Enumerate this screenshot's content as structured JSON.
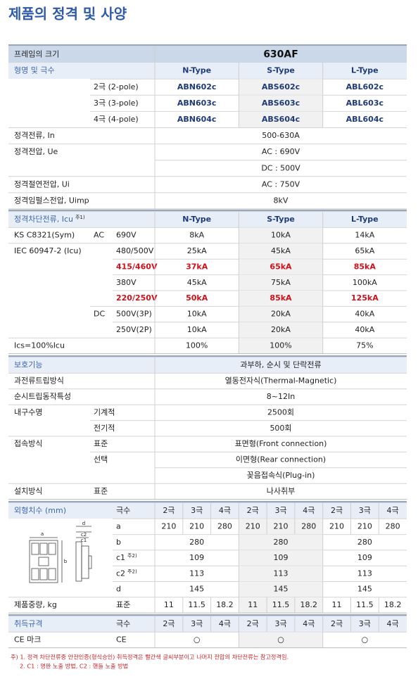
{
  "title": "제품의 정격 및 사양",
  "sections": [
    {
      "rows": [
        {
          "label": "프레임의 크기",
          "values": [
            "630AF"
          ],
          "style": "frame"
        },
        {
          "label": "형명 및 극수",
          "values": [
            "N-Type",
            "S-Type",
            "L-Type"
          ],
          "style": "head"
        },
        {
          "col2": "2극 (2-pole)",
          "values": [
            "ABN602c",
            "ABS602c",
            "ABL602c"
          ],
          "style": "model"
        },
        {
          "col2": "3극 (3-pole)",
          "values": [
            "ABN603c",
            "ABS603c",
            "ABL603c"
          ],
          "style": "model"
        },
        {
          "col2": "4극 (4-pole)",
          "values": [
            "ABN604c",
            "ABS604c",
            "ABL604c"
          ],
          "style": "model"
        },
        {
          "label": "정격전류, In",
          "values": [
            "500-630A"
          ]
        },
        {
          "label": "정격전압, Ue",
          "values": [
            "AC : 690V"
          ]
        },
        {
          "values": [
            "DC : 500V"
          ]
        },
        {
          "label": "정격절연전압, Ui",
          "values": [
            "AC : 750V"
          ]
        },
        {
          "label": "정격임펄스전압, Uimp",
          "values": [
            "8kV"
          ]
        }
      ]
    },
    {
      "rows": [
        {
          "label": "정격차단전류, Icu",
          "note": "주1)",
          "values": [
            "N-Type",
            "S-Type",
            "L-Type"
          ],
          "style": "head"
        },
        {
          "label": "KS C8321(Sym)",
          "col2": "AC",
          "col3": "690V",
          "values": [
            "8kA",
            "10kA",
            "14kA"
          ]
        },
        {
          "label": "IEC 60947-2 (Icu)",
          "col3": "480/500V",
          "values": [
            "25kA",
            "45kA",
            "65kA"
          ]
        },
        {
          "col3": "415/460V",
          "values": [
            "37kA",
            "65kA",
            "85kA"
          ],
          "style": "red"
        },
        {
          "col3": "380V",
          "values": [
            "45kA",
            "75kA",
            "100kA"
          ]
        },
        {
          "col3": "220/250V",
          "values": [
            "50kA",
            "85kA",
            "125kA"
          ],
          "style": "red"
        },
        {
          "col2": "DC",
          "col3": "500V(3P)",
          "values": [
            "10kA",
            "20kA",
            "40kA"
          ]
        },
        {
          "col3": "250V(2P)",
          "values": [
            "10kA",
            "20kA",
            "40kA"
          ]
        },
        {
          "label": "Ics=100%Icu",
          "values": [
            "100%",
            "100%",
            "75%"
          ]
        }
      ]
    },
    {
      "rows": [
        {
          "label": "보호기능",
          "values": [
            "과부하, 순시 및 단락전류"
          ],
          "style": "head2"
        },
        {
          "label": "과전류트립방식",
          "values": [
            "열동전자식(Thermal-Magnetic)"
          ]
        },
        {
          "label": "순시트립동작특성",
          "values": [
            "8~12In"
          ]
        },
        {
          "label": "내구수명",
          "col2": "기계적",
          "values": [
            "2500회"
          ]
        },
        {
          "col2": "전기적",
          "values": [
            "500회"
          ]
        },
        {
          "label": "접속방식",
          "col2": "표준",
          "values": [
            "표면형(Front connection)"
          ]
        },
        {
          "col2": "선택",
          "values": [
            "이면형(Rear connection)"
          ]
        },
        {
          "values": [
            "꽂음접속식(Plug-in)"
          ]
        },
        {
          "label": "설치방식",
          "col2": "표준",
          "values": [
            "나사취부"
          ]
        }
      ]
    },
    {
      "rows": [
        {
          "label": "외형치수 (mm)",
          "col3": "극수",
          "values": [
            "2극",
            "3극",
            "4극",
            "2극",
            "3극",
            "4극",
            "2극",
            "3극",
            "4극"
          ],
          "style": "head2"
        },
        {
          "col3": "a",
          "values": [
            210,
            210,
            280,
            210,
            210,
            280,
            210,
            210,
            280
          ]
        },
        {
          "col3": "b",
          "values": [
            280,
            280,
            280
          ]
        },
        {
          "col3": "c1",
          "note": "주2)",
          "values": [
            109,
            109,
            109
          ]
        },
        {
          "col3": "c2",
          "note": "주2)",
          "values": [
            113,
            113,
            113
          ]
        },
        {
          "col3": "d",
          "values": [
            145,
            145,
            145
          ]
        },
        {
          "label": "제품중량, kg",
          "col3": "표준",
          "values": [
            11,
            11.5,
            18.2,
            11,
            11.5,
            18.2,
            11,
            11.5,
            18.2
          ]
        }
      ]
    },
    {
      "rows": [
        {
          "label": "취득규격",
          "col3": "극수",
          "values": [
            "2극",
            "3극",
            "4극",
            "2극",
            "3극",
            "4극",
            "2극",
            "3극",
            "4극"
          ],
          "style": "head2"
        },
        {
          "label": "CE 마크",
          "col3": "CE",
          "values": [
            "○",
            "○",
            "○"
          ]
        }
      ]
    }
  ],
  "drawing_labels": [
    "a",
    "b",
    "c1",
    "c2",
    "d"
  ],
  "footnotes": [
    "주) 1. 정격 차단전류중 안전인증(형식승인) 취득정격은 빨간색 글씨부분이고 나머지 전압의 차단전류는 참고정격임.",
    "2. C1 : 명판 노출 방법, C2 : 핸들 노출 방법"
  ]
}
